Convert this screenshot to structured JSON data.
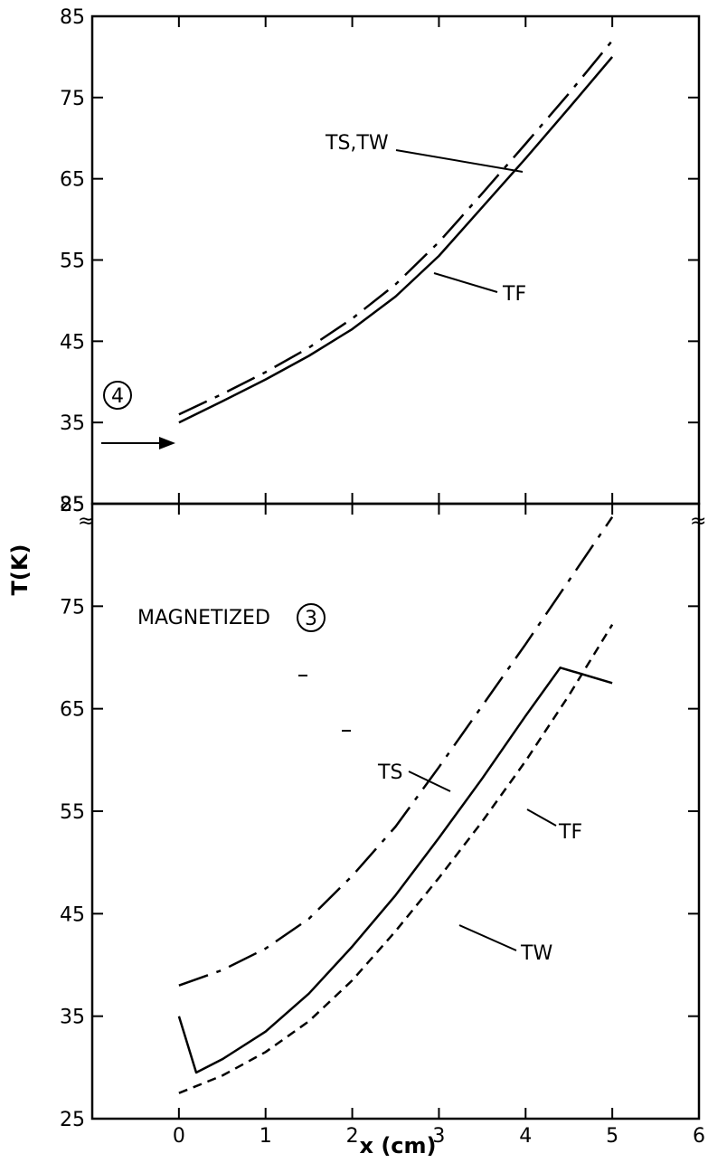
{
  "chart_data": [
    {
      "type": "line",
      "panel": "top",
      "xlabel": "",
      "ylabel": "T(K)",
      "xlim": [
        -1,
        6
      ],
      "ylim": [
        25,
        85
      ],
      "x_ticks": [
        "0",
        "1",
        "2",
        "3",
        "4",
        "5",
        "6"
      ],
      "y_ticks": [
        "25",
        "35",
        "45",
        "55",
        "65",
        "75",
        "85"
      ],
      "grid": false,
      "annotations": [
        {
          "text": "TS,TW",
          "points_to": "TS,TW"
        },
        {
          "text": "TF",
          "points_to": "TF"
        },
        {
          "text": "4",
          "marker": "circled",
          "arrow_to": [
            0,
            35
          ]
        }
      ],
      "series": [
        {
          "name": "TS,TW",
          "style": "dash-dot",
          "color": "#000000",
          "x": [
            0,
            0.5,
            1,
            1.5,
            2,
            2.5,
            3,
            3.5,
            4,
            4.5,
            5
          ],
          "y": [
            36,
            38.5,
            41.2,
            44.2,
            47.8,
            52,
            57.2,
            63.2,
            69.3,
            75.5,
            82
          ]
        },
        {
          "name": "TF",
          "style": "solid",
          "color": "#000000",
          "x": [
            0,
            0.5,
            1,
            1.5,
            2,
            2.5,
            3,
            3.5,
            4,
            4.5,
            5
          ],
          "y": [
            35,
            37.6,
            40.3,
            43.2,
            46.5,
            50.5,
            55.5,
            61.5,
            67.5,
            73.7,
            80
          ]
        }
      ]
    },
    {
      "type": "line",
      "panel": "bottom",
      "xlabel": "x (cm)",
      "ylabel": "T(K)",
      "xlim": [
        -1,
        6
      ],
      "ylim": [
        25,
        85
      ],
      "x_ticks": [
        "0",
        "1",
        "2",
        "3",
        "4",
        "5",
        "6"
      ],
      "y_ticks": [
        "25",
        "35",
        "45",
        "55",
        "65",
        "75",
        "85"
      ],
      "grid": false,
      "annotations": [
        {
          "text": "MAGNETIZED",
          "marker_text": "3"
        },
        {
          "text": "TS",
          "points_to": "TS"
        },
        {
          "text": "TF",
          "points_to": "TF"
        },
        {
          "text": "TW",
          "points_to": "TW"
        }
      ],
      "series": [
        {
          "name": "TS",
          "style": "dash-dot",
          "color": "#000000",
          "x": [
            0,
            0.5,
            1,
            1.5,
            2,
            2.5,
            3,
            3.5,
            4,
            4.5,
            5
          ],
          "y": [
            38,
            39.5,
            41.6,
            44.5,
            48.7,
            53.5,
            59.3,
            65.3,
            71.3,
            77.5,
            83.7
          ]
        },
        {
          "name": "TF",
          "style": "solid",
          "color": "#000000",
          "x": [
            0,
            0.2,
            0.5,
            1,
            1.5,
            2,
            2.5,
            3,
            3.5,
            4,
            4.4,
            5
          ],
          "y": [
            35,
            29.5,
            30.8,
            33.5,
            37.2,
            41.8,
            46.8,
            52.4,
            58.2,
            64.3,
            69,
            67.5
          ]
        },
        {
          "name": "TW",
          "style": "dashed",
          "color": "#000000",
          "x": [
            0,
            0.5,
            1,
            1.5,
            2,
            2.5,
            3,
            3.5,
            4,
            4.5,
            5
          ],
          "y": [
            27.5,
            29.2,
            31.5,
            34.5,
            38.5,
            43.3,
            48.5,
            54,
            59.9,
            66.3,
            73.2
          ]
        }
      ]
    }
  ]
}
